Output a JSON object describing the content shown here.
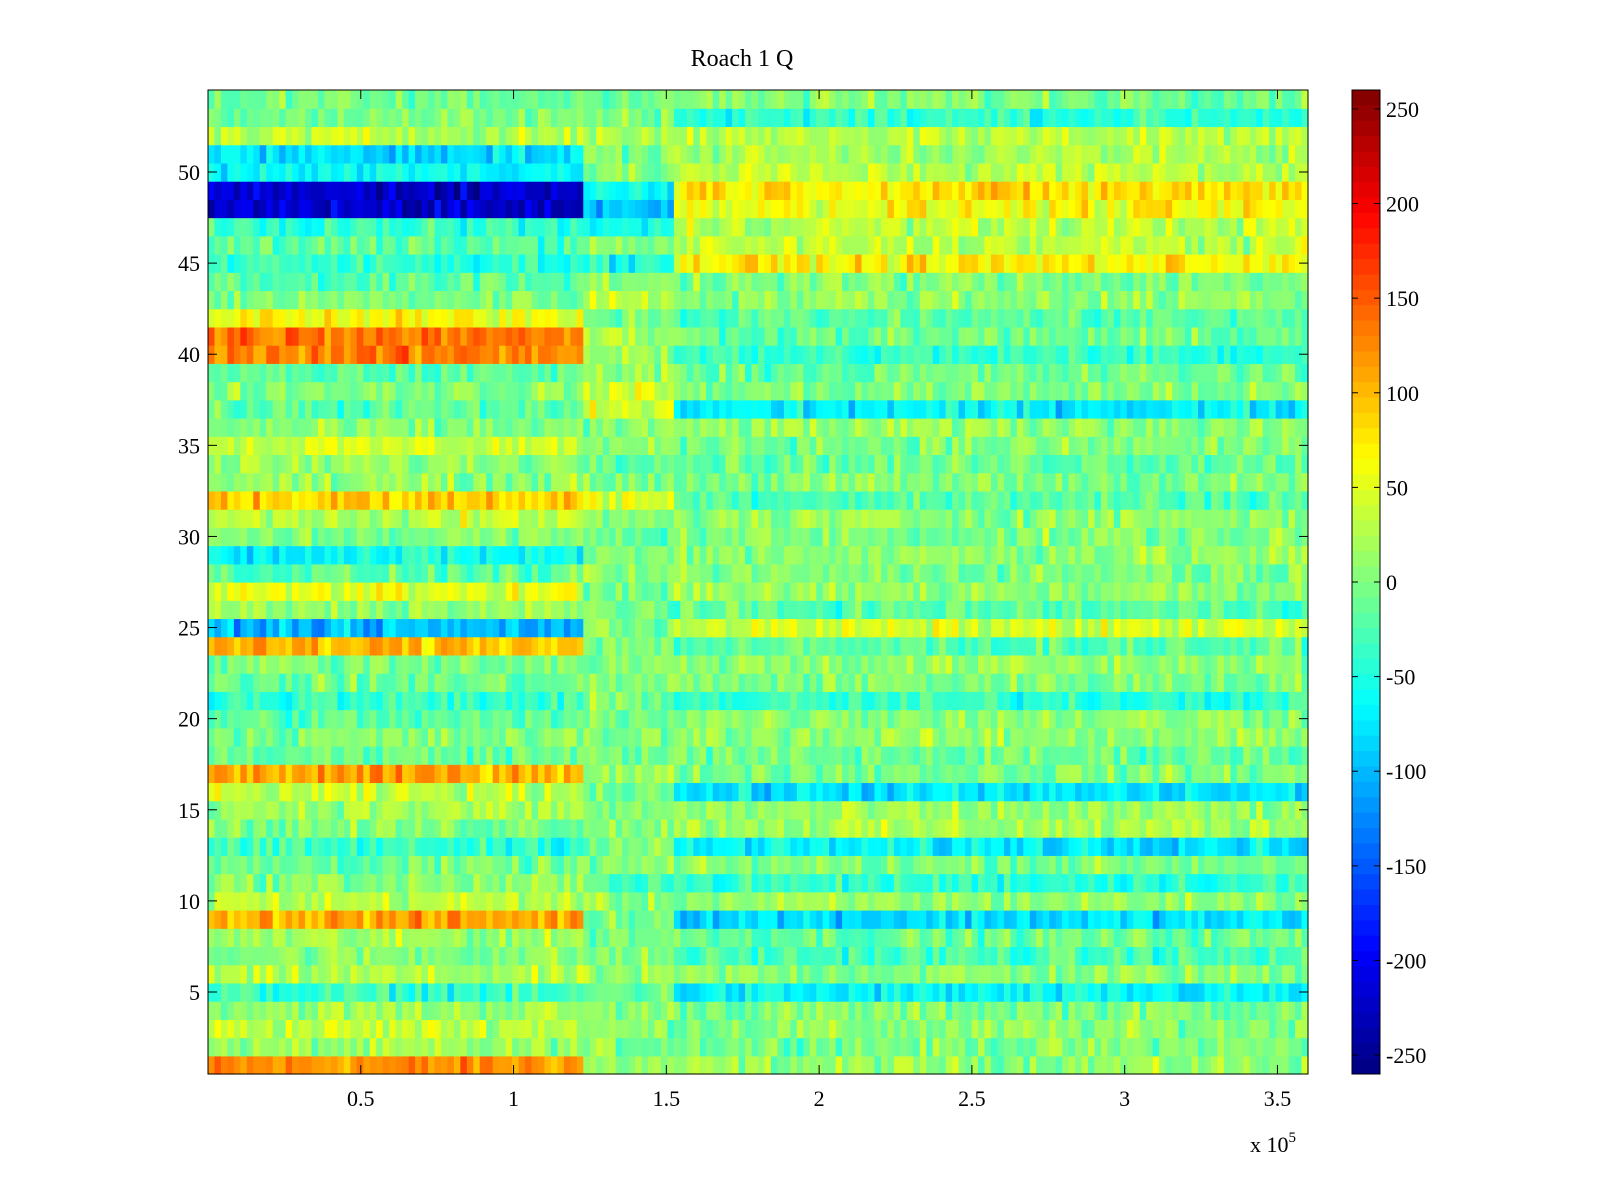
{
  "chart_data": {
    "type": "heatmap",
    "title": "Roach 1 Q",
    "xlabel": "",
    "ylabel": "",
    "x_exponent_label": "x 10",
    "x_exponent_power": "5",
    "xlim": [
      0,
      3.6
    ],
    "ylim": [
      0.5,
      54.5
    ],
    "n_rows": 54,
    "xticks": [
      0.5,
      1,
      1.5,
      2,
      2.5,
      3,
      3.5
    ],
    "xtick_labels": [
      "0.5",
      "1",
      "1.5",
      "2",
      "2.5",
      "3",
      "3.5"
    ],
    "yticks": [
      5,
      10,
      15,
      20,
      25,
      30,
      35,
      40,
      45,
      50
    ],
    "ytick_labels": [
      "5",
      "10",
      "15",
      "20",
      "25",
      "30",
      "35",
      "40",
      "45",
      "50"
    ],
    "colormap": "jet",
    "clim": [
      -260,
      260
    ],
    "colorbar_ticks": [
      250,
      200,
      150,
      100,
      50,
      0,
      -50,
      -100,
      -150,
      -200,
      -250
    ],
    "colorbar_tick_labels": [
      "250",
      "200",
      "150",
      "100",
      "50",
      "0",
      "-50",
      "-100",
      "-150",
      "-200",
      "-250"
    ],
    "segment_breaks_x": [
      1.23,
      1.53
    ],
    "row_mean_values": {
      "description_of_segments": [
        "0 - 1.23 (x10^5)",
        "1.23 - 1.53 (x10^5)",
        "1.53 - 3.6 (x10^5)"
      ],
      "rows": [
        [
          1,
          120,
          10,
          10
        ],
        [
          2,
          10,
          0,
          0
        ],
        [
          3,
          35,
          5,
          5
        ],
        [
          4,
          15,
          5,
          0
        ],
        [
          5,
          -40,
          -10,
          -70
        ],
        [
          6,
          20,
          5,
          5
        ],
        [
          7,
          5,
          0,
          -30
        ],
        [
          8,
          15,
          0,
          -10
        ],
        [
          9,
          110,
          0,
          -80
        ],
        [
          10,
          30,
          5,
          10
        ],
        [
          11,
          5,
          -20,
          -40
        ],
        [
          12,
          -10,
          0,
          0
        ],
        [
          13,
          -40,
          0,
          -70
        ],
        [
          14,
          0,
          10,
          20
        ],
        [
          15,
          20,
          0,
          10
        ],
        [
          16,
          30,
          0,
          -80
        ],
        [
          17,
          110,
          10,
          0
        ],
        [
          18,
          -10,
          0,
          -10
        ],
        [
          19,
          0,
          0,
          10
        ],
        [
          20,
          -20,
          0,
          10
        ],
        [
          21,
          -40,
          0,
          -40
        ],
        [
          22,
          -10,
          0,
          0
        ],
        [
          23,
          0,
          0,
          10
        ],
        [
          24,
          100,
          0,
          -20
        ],
        [
          25,
          -100,
          0,
          40
        ],
        [
          26,
          10,
          0,
          -20
        ],
        [
          27,
          50,
          0,
          10
        ],
        [
          28,
          -20,
          0,
          0
        ],
        [
          29,
          -60,
          0,
          10
        ],
        [
          30,
          0,
          -10,
          0
        ],
        [
          31,
          30,
          0,
          10
        ],
        [
          32,
          90,
          50,
          -20
        ],
        [
          33,
          10,
          0,
          0
        ],
        [
          34,
          10,
          0,
          -10
        ],
        [
          35,
          40,
          0,
          0
        ],
        [
          36,
          0,
          0,
          10
        ],
        [
          37,
          -20,
          40,
          -70
        ],
        [
          38,
          5,
          40,
          0
        ],
        [
          39,
          -20,
          20,
          -10
        ],
        [
          40,
          130,
          20,
          -40
        ],
        [
          41,
          140,
          20,
          -10
        ],
        [
          42,
          60,
          0,
          -20
        ],
        [
          43,
          0,
          30,
          10
        ],
        [
          44,
          -20,
          10,
          0
        ],
        [
          45,
          -40,
          -50,
          70
        ],
        [
          46,
          -20,
          0,
          30
        ],
        [
          47,
          -40,
          -60,
          30
        ],
        [
          48,
          -220,
          -100,
          60
        ],
        [
          49,
          -220,
          -60,
          80
        ],
        [
          50,
          -60,
          0,
          30
        ],
        [
          51,
          -80,
          0,
          20
        ],
        [
          52,
          30,
          20,
          30
        ],
        [
          53,
          0,
          0,
          -40
        ],
        [
          54,
          -10,
          0,
          0
        ]
      ]
    }
  }
}
